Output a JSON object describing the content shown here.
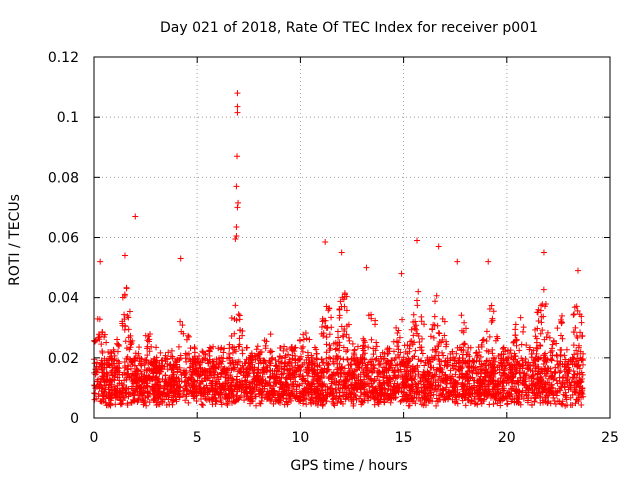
{
  "chart_data": {
    "type": "scatter",
    "title": "Day 021 of 2018, Rate Of TEC Index for receiver p001",
    "xlabel": "GPS time / hours",
    "ylabel": "ROTI / TECUs",
    "xlim": [
      0,
      25
    ],
    "ylim": [
      0,
      0.12
    ],
    "xticks": [
      0,
      5,
      10,
      15,
      20,
      25
    ],
    "yticks": [
      0,
      0.02,
      0.04,
      0.06,
      0.08,
      0.1,
      0.12
    ],
    "xtick_labels": [
      "0",
      "5",
      "10",
      "15",
      "20",
      "25"
    ],
    "ytick_labels": [
      "0",
      "0.02",
      "0.04",
      "0.06",
      "0.08",
      "0.1",
      "0.12"
    ],
    "grid": true,
    "marker": "+",
    "marker_color": "#ff0000",
    "series": [
      {
        "name": "p001",
        "x_range": [
          0.0,
          23.7
        ],
        "typical_min": 0.004,
        "typical_max": 0.035,
        "notable_points": [
          {
            "x": 6.95,
            "y": 0.108
          },
          {
            "x": 6.95,
            "y": 0.1035
          },
          {
            "x": 6.95,
            "y": 0.1015
          },
          {
            "x": 6.93,
            "y": 0.087
          },
          {
            "x": 6.9,
            "y": 0.077
          },
          {
            "x": 6.98,
            "y": 0.0715
          },
          {
            "x": 6.95,
            "y": 0.07
          },
          {
            "x": 6.9,
            "y": 0.0635
          },
          {
            "x": 6.9,
            "y": 0.0605
          },
          {
            "x": 6.85,
            "y": 0.0595
          },
          {
            "x": 2.0,
            "y": 0.067
          },
          {
            "x": 11.2,
            "y": 0.0585
          },
          {
            "x": 15.65,
            "y": 0.059
          },
          {
            "x": 16.7,
            "y": 0.057
          },
          {
            "x": 1.5,
            "y": 0.054
          },
          {
            "x": 4.2,
            "y": 0.053
          },
          {
            "x": 21.8,
            "y": 0.055
          },
          {
            "x": 17.6,
            "y": 0.052
          },
          {
            "x": 19.1,
            "y": 0.052
          },
          {
            "x": 23.45,
            "y": 0.049
          },
          {
            "x": 12.0,
            "y": 0.055
          },
          {
            "x": 0.3,
            "y": 0.052
          },
          {
            "x": 13.2,
            "y": 0.05
          },
          {
            "x": 14.9,
            "y": 0.048
          }
        ]
      }
    ]
  }
}
